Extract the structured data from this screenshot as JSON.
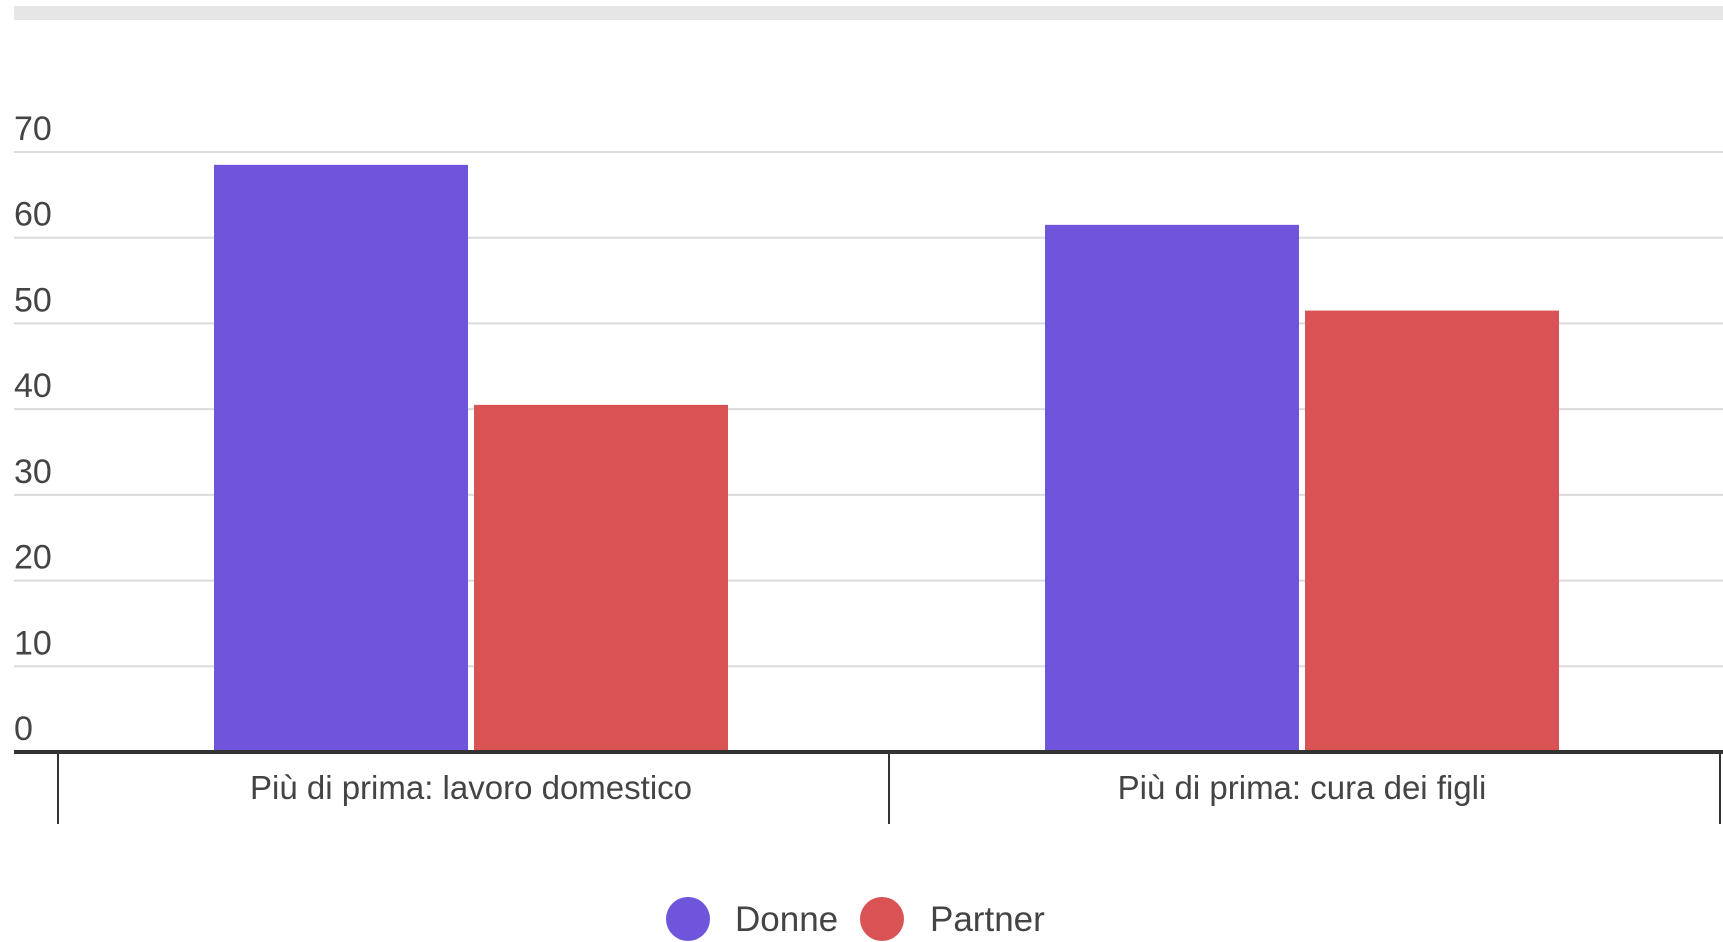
{
  "chart_data": {
    "type": "bar",
    "title": "",
    "xlabel": "",
    "ylabel": "",
    "categories": [
      "Più di prima: lavoro domestico",
      "Più di prima: cura dei figli"
    ],
    "series": [
      {
        "name": "Donne",
        "color": "#6f55dc",
        "values": [
          68.5,
          61.5
        ]
      },
      {
        "name": "Partner",
        "color": "#d95355",
        "values": [
          40.5,
          51.5
        ]
      }
    ],
    "ylim": [
      0,
      70
    ],
    "yticks": [
      0,
      10,
      20,
      30,
      40,
      50,
      60,
      70
    ],
    "grid": true,
    "legend_position": "bottom"
  }
}
